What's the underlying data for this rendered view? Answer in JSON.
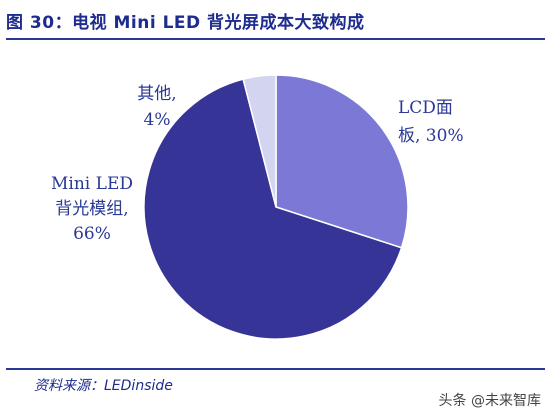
{
  "header": {
    "title": "图 30：电视 Mini LED 背光屏成本大致构成"
  },
  "footer": {
    "source": "资料来源：LEDinside",
    "watermark": "头条 @未来智库"
  },
  "colors": {
    "accent": "#2a3896",
    "title": "#1e2b8f"
  },
  "chart_data": {
    "type": "pie",
    "title": "图 30：电视 Mini LED 背光屏成本大致构成",
    "start": "12 o'clock, clockwise",
    "slices": [
      {
        "label_lines": [
          "LCD面",
          "板, 30%"
        ],
        "value": 30,
        "color": "#7b79d5"
      },
      {
        "label_lines": [
          "Mini LED",
          "背光模组,",
          "66%"
        ],
        "value": 66,
        "color": "#363496"
      },
      {
        "label_lines": [
          "其他,",
          "4%"
        ],
        "value": 4,
        "color": "#d2d4f0"
      }
    ]
  }
}
